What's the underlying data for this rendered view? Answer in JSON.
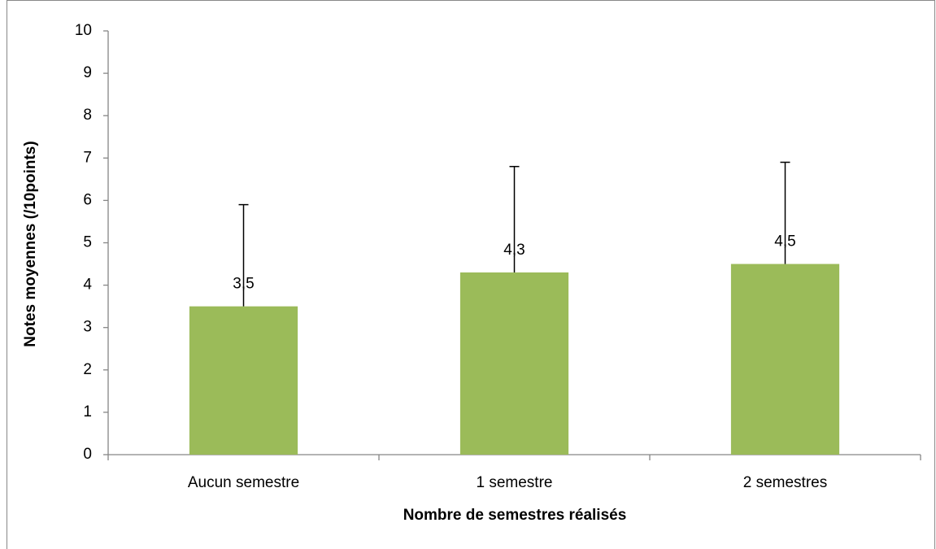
{
  "chart_data": {
    "type": "bar",
    "categories": [
      "Aucun semestre",
      "1 semestre",
      "2 semestres"
    ],
    "values": [
      3.5,
      4.3,
      4.5
    ],
    "value_labels": [
      "3,5",
      "4,3",
      "4,5"
    ],
    "errors": [
      2.4,
      2.5,
      2.4
    ],
    "color": "#9bbb59",
    "xlabel": "Nombre de semestres réalisés",
    "ylabel": "Notes moyennes (/10points)",
    "ylim": [
      0,
      10
    ],
    "yticks": [
      0,
      1,
      2,
      3,
      4,
      5,
      6,
      7,
      8,
      9,
      10
    ],
    "grid": false
  }
}
